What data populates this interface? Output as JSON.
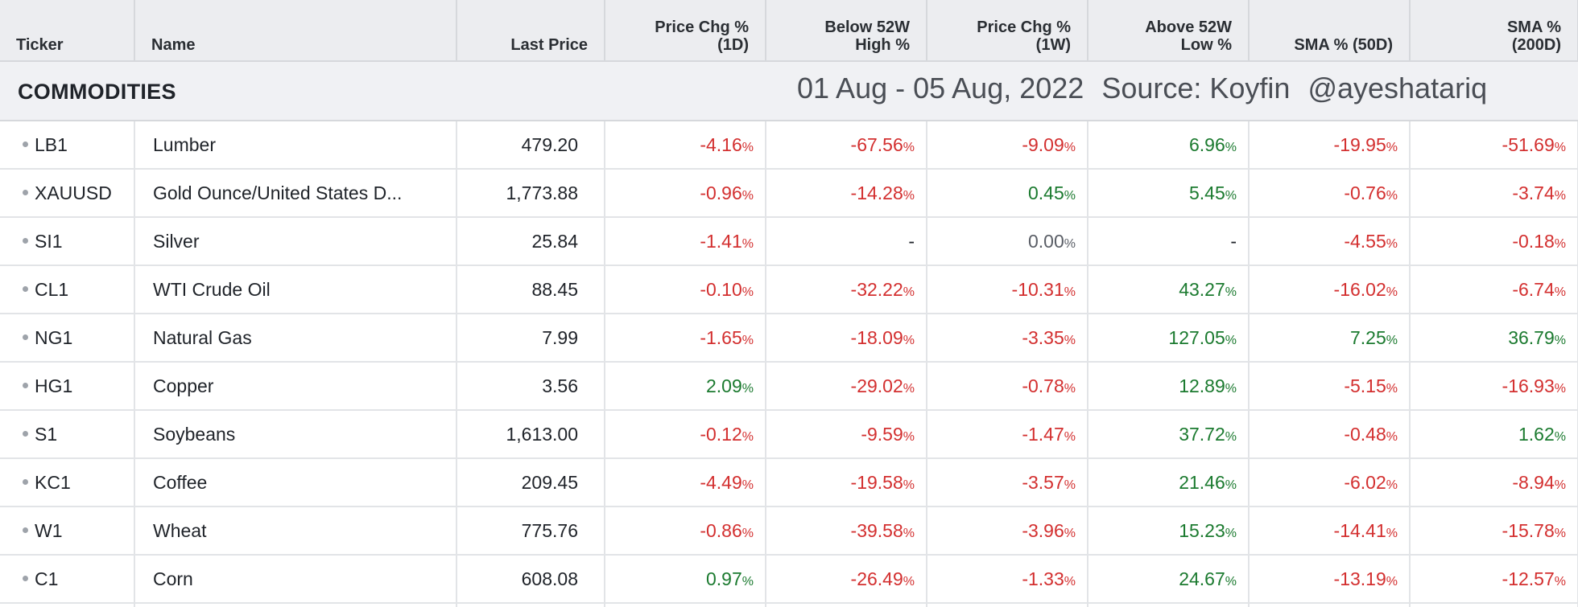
{
  "columns": {
    "ticker": "Ticker",
    "name": "Name",
    "last_price": "Last Price",
    "chg_1d": [
      "Price Chg %",
      "(1D)"
    ],
    "below_52w_high": [
      "Below 52W",
      "High %"
    ],
    "chg_1w": [
      "Price Chg %",
      "(1W)"
    ],
    "above_52w_low": [
      "Above 52W",
      "Low %"
    ],
    "sma_50d": "SMA % (50D)",
    "sma_200d": [
      "SMA %",
      "(200D)"
    ]
  },
  "section": {
    "label": "COMMODITIES",
    "date_range": "01 Aug - 05 Aug, 2022",
    "source": "Source: Koyfin",
    "handle": "@ayeshatariq"
  },
  "percent_sign": "%",
  "rows": [
    {
      "ticker": "LB1",
      "name": "Lumber",
      "last_price": "479.20",
      "chg_1d": "-4.16",
      "below_52w_high": "-67.56",
      "chg_1w": "-9.09",
      "above_52w_low": "6.96",
      "sma_50d": "-19.95",
      "sma_200d": "-51.69"
    },
    {
      "ticker": "XAUUSD",
      "name": "Gold Ounce/United States D...",
      "last_price": "1,773.88",
      "chg_1d": "-0.96",
      "below_52w_high": "-14.28",
      "chg_1w": "0.45",
      "above_52w_low": "5.45",
      "sma_50d": "-0.76",
      "sma_200d": "-3.74"
    },
    {
      "ticker": "SI1",
      "name": "Silver",
      "last_price": "25.84",
      "chg_1d": "-1.41",
      "below_52w_high": "-",
      "chg_1w": "0.00",
      "above_52w_low": "-",
      "sma_50d": "-4.55",
      "sma_200d": "-0.18"
    },
    {
      "ticker": "CL1",
      "name": "WTI Crude Oil",
      "last_price": "88.45",
      "chg_1d": "-0.10",
      "below_52w_high": "-32.22",
      "chg_1w": "-10.31",
      "above_52w_low": "43.27",
      "sma_50d": "-16.02",
      "sma_200d": "-6.74"
    },
    {
      "ticker": "NG1",
      "name": "Natural Gas",
      "last_price": "7.99",
      "chg_1d": "-1.65",
      "below_52w_high": "-18.09",
      "chg_1w": "-3.35",
      "above_52w_low": "127.05",
      "sma_50d": "7.25",
      "sma_200d": "36.79"
    },
    {
      "ticker": "HG1",
      "name": "Copper",
      "last_price": "3.56",
      "chg_1d": "2.09",
      "below_52w_high": "-29.02",
      "chg_1w": "-0.78",
      "above_52w_low": "12.89",
      "sma_50d": "-5.15",
      "sma_200d": "-16.93"
    },
    {
      "ticker": "S1",
      "name": "Soybeans",
      "last_price": "1,613.00",
      "chg_1d": "-0.12",
      "below_52w_high": "-9.59",
      "chg_1w": "-1.47",
      "above_52w_low": "37.72",
      "sma_50d": "-0.48",
      "sma_200d": "1.62"
    },
    {
      "ticker": "KC1",
      "name": "Coffee",
      "last_price": "209.45",
      "chg_1d": "-4.49",
      "below_52w_high": "-19.58",
      "chg_1w": "-3.57",
      "above_52w_low": "21.46",
      "sma_50d": "-6.02",
      "sma_200d": "-8.94"
    },
    {
      "ticker": "W1",
      "name": "Wheat",
      "last_price": "775.76",
      "chg_1d": "-0.86",
      "below_52w_high": "-39.58",
      "chg_1w": "-3.96",
      "above_52w_low": "15.23",
      "sma_50d": "-14.41",
      "sma_200d": "-15.78"
    },
    {
      "ticker": "C1",
      "name": "Corn",
      "last_price": "608.08",
      "chg_1d": "0.97",
      "below_52w_high": "-26.49",
      "chg_1w": "-1.33",
      "above_52w_low": "24.67",
      "sma_50d": "-13.19",
      "sma_200d": "-12.57"
    }
  ],
  "colors": {
    "negative": "#d32f2f",
    "positive": "#1b7a2f",
    "neutral": "#5a5e66"
  }
}
